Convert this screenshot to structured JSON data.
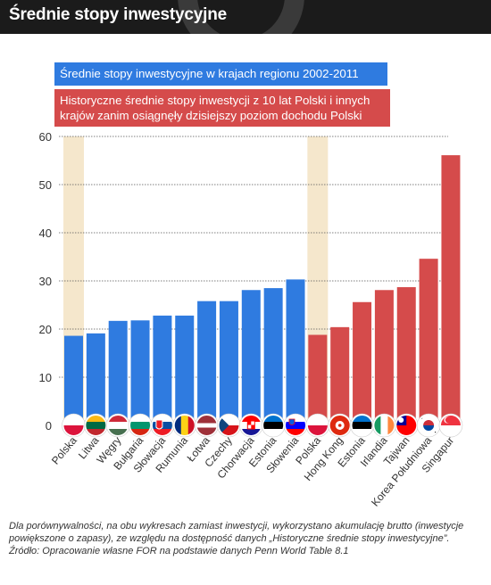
{
  "header": {
    "title": "Średnie stopy inwestycyjne"
  },
  "legend": {
    "blue_label": "Średnie stopy inwestycyjne w krajach regionu 2002-2011",
    "red_label": "Historyczne średnie stopy inwestycji z 10 lat Polski i innych krajów zanim osiągnęły dzisiejszy poziom dochodu Polski"
  },
  "colors": {
    "blue": "#2f7be0",
    "red": "#d54b4b",
    "highlight": "#f3e3c3",
    "header": "#1b1b1b"
  },
  "chart_data": {
    "type": "bar",
    "ylim": [
      0,
      60
    ],
    "yticks": [
      0,
      10,
      20,
      30,
      40,
      50,
      60
    ],
    "grid": true,
    "legend_position": "top-left",
    "categories": [
      "Polska",
      "Litwa",
      "Węgry",
      "Bułgaria",
      "Słowacja",
      "Rumunia",
      "Łotwa",
      "Czechy",
      "Chorwacja",
      "Estonia",
      "Słowenia",
      "Polska",
      "Hong Kong",
      "Estonia",
      "Irlandia",
      "Tajwan",
      "Korea Południowa",
      "Singapur"
    ],
    "values": [
      18.6,
      19.1,
      21.7,
      21.8,
      22.8,
      22.8,
      25.8,
      25.8,
      28.1,
      28.5,
      30.3,
      18.8,
      20.4,
      25.6,
      28.1,
      28.7,
      34.6,
      56.1
    ],
    "series_group": [
      "blue",
      "blue",
      "blue",
      "blue",
      "blue",
      "blue",
      "blue",
      "blue",
      "blue",
      "blue",
      "blue",
      "red",
      "red",
      "red",
      "red",
      "red",
      "red",
      "red"
    ],
    "highlighted": [
      "Polska"
    ],
    "flag_icons": [
      "flag-poland-icon",
      "flag-lithuania-icon",
      "flag-hungary-icon",
      "flag-bulgaria-icon",
      "flag-slovakia-icon",
      "flag-romania-icon",
      "flag-latvia-icon",
      "flag-czechia-icon",
      "flag-croatia-icon",
      "flag-estonia-icon",
      "flag-slovenia-icon",
      "flag-poland-icon",
      "flag-hongkong-icon",
      "flag-estonia-icon",
      "flag-ireland-icon",
      "flag-taiwan-icon",
      "flag-southkorea-icon",
      "flag-singapore-icon"
    ]
  },
  "footer": {
    "note": "Dla porównywalności, na obu wykresach zamiast inwestycji, wykorzystano akumulację brutto (inwestycje powiększone o zapasy), ze względu na dostępność danych „Historyczne średnie stopy inwestycyjne”.",
    "source": "Źródło: Opracowanie własne FOR na podstawie danych Penn World Table 8.1"
  }
}
